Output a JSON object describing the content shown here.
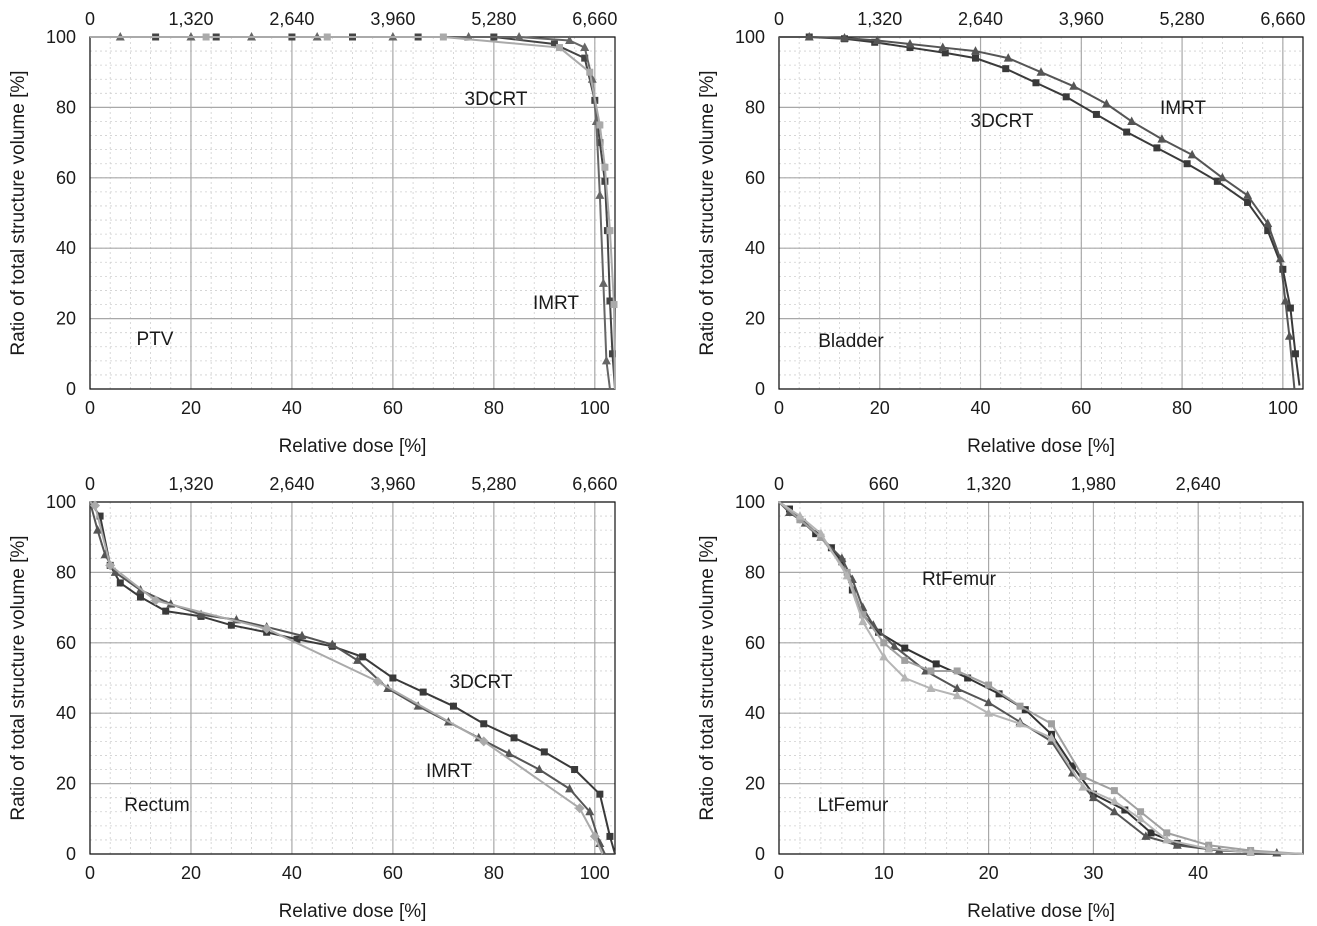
{
  "figure": {
    "panels": [
      {
        "id": "ptv",
        "xlabel": "Relative dose [%]",
        "ylabel": "Ratio of total structure volume [%]",
        "xticks": [
          "0",
          "20",
          "40",
          "60",
          "80",
          "100"
        ],
        "yticks": [
          "0",
          "20",
          "40",
          "60",
          "80",
          "100"
        ],
        "top_ticks": [
          "0",
          "1,320",
          "2,640",
          "3,960",
          "5,280",
          "6,660"
        ],
        "annotations": [
          "3DCRT",
          "IMRT",
          "PTV"
        ]
      },
      {
        "id": "bladder",
        "xlabel": "Relative dose [%]",
        "ylabel": "Ratio of total structure volume [%]",
        "xticks": [
          "0",
          "20",
          "40",
          "60",
          "80",
          "100"
        ],
        "yticks": [
          "0",
          "20",
          "40",
          "60",
          "80",
          "100"
        ],
        "top_ticks": [
          "0",
          "1,320",
          "2,640",
          "3,960",
          "5,280",
          "6,660"
        ],
        "annotations": [
          "IMRT",
          "3DCRT",
          "Bladder"
        ]
      },
      {
        "id": "rectum",
        "xlabel": "Relative dose [%]",
        "ylabel": "Ratio of total structure volume [%]",
        "xticks": [
          "0",
          "20",
          "40",
          "60",
          "80",
          "100"
        ],
        "yticks": [
          "0",
          "20",
          "40",
          "60",
          "80",
          "100"
        ],
        "top_ticks": [
          "0",
          "1,320",
          "2,640",
          "3,960",
          "5,280",
          "6,660"
        ],
        "annotations": [
          "3DCRT",
          "IMRT",
          "Rectum"
        ]
      },
      {
        "id": "femur",
        "xlabel": "Relative dose [%]",
        "ylabel": "Ratio of total structure volume [%]",
        "xticks": [
          "0",
          "10",
          "20",
          "30",
          "40"
        ],
        "yticks": [
          "0",
          "20",
          "40",
          "60",
          "80",
          "100"
        ],
        "top_ticks": [
          "0",
          "660",
          "1,320",
          "1,980",
          "2,640"
        ],
        "annotations": [
          "RtFemur",
          "LtFemur"
        ]
      }
    ]
  },
  "chart_data": [
    {
      "type": "line",
      "structure": "PTV",
      "xlabel": "Relative dose [%]",
      "ylabel": "Ratio of total structure volume [%]",
      "xlim": [
        0,
        104
      ],
      "ylim": [
        0,
        100
      ],
      "top_axis_ticks": [
        0,
        1320,
        2640,
        3960,
        5280,
        6660
      ],
      "grid": true,
      "series": [
        {
          "name": "3DCRT",
          "color": "#444444",
          "marker": "square",
          "x": [
            0,
            13,
            25,
            40,
            52,
            65,
            80,
            92,
            98,
            100,
            101,
            102,
            102.5,
            103,
            103.5,
            104
          ],
          "y": [
            100,
            100,
            100,
            100,
            100,
            100,
            100,
            98,
            94,
            82,
            70,
            59,
            45,
            25,
            10,
            0
          ]
        },
        {
          "name": "IMRT",
          "color": "#666666",
          "marker": "triangle",
          "x": [
            0,
            6,
            20,
            32,
            45,
            60,
            75,
            85,
            95,
            98,
            99.5,
            100.3,
            101,
            101.7,
            102.3,
            103
          ],
          "y": [
            100,
            100,
            100,
            100,
            100,
            100,
            100,
            100,
            99,
            97,
            88,
            76,
            55,
            30,
            8,
            0
          ]
        },
        {
          "name": "3DCRT (light)",
          "color": "#aaaaaa",
          "marker": "square",
          "x": [
            0,
            23,
            47,
            70,
            93,
            99,
            101,
            102,
            103,
            103.8,
            104
          ],
          "y": [
            100,
            100,
            100,
            100,
            97,
            90,
            75,
            63,
            45,
            24,
            0
          ]
        }
      ]
    },
    {
      "type": "line",
      "structure": "Bladder",
      "xlabel": "Relative dose [%]",
      "ylabel": "Ratio of total structure volume [%]",
      "xlim": [
        0,
        104
      ],
      "ylim": [
        0,
        100
      ],
      "top_axis_ticks": [
        0,
        1320,
        2640,
        3960,
        5280,
        6660
      ],
      "grid": true,
      "series": [
        {
          "name": "3DCRT",
          "color": "#3a3a3a",
          "marker": "square",
          "x": [
            0,
            6,
            13,
            19,
            26,
            33,
            39,
            45,
            51,
            57,
            63,
            69,
            75,
            81,
            87,
            93,
            97,
            100,
            101.5,
            102.5,
            103.3
          ],
          "y": [
            100,
            100,
            99.5,
            98.5,
            97,
            95.5,
            94,
            91,
            87,
            83,
            78,
            73,
            68.5,
            64,
            59,
            53,
            45,
            34,
            23,
            10,
            1
          ]
        },
        {
          "name": "IMRT",
          "color": "#555555",
          "marker": "triangle",
          "x": [
            0,
            6,
            13,
            19.5,
            26,
            32.5,
            39,
            45.5,
            52,
            58.5,
            65,
            70,
            76,
            82,
            88,
            93,
            97,
            99.5,
            100.5,
            101.3,
            102.3
          ],
          "y": [
            100,
            100,
            99.7,
            99,
            98,
            97,
            96,
            94,
            90,
            86,
            81,
            76,
            71,
            66.5,
            60,
            55,
            47,
            37,
            25,
            15,
            0
          ]
        }
      ]
    },
    {
      "type": "line",
      "structure": "Rectum",
      "xlabel": "Relative dose [%]",
      "ylabel": "Ratio of total structure volume [%]",
      "xlim": [
        0,
        104
      ],
      "ylim": [
        0,
        100
      ],
      "top_axis_ticks": [
        0,
        1320,
        2640,
        3960,
        5280,
        6660
      ],
      "grid": true,
      "series": [
        {
          "name": "3DCRT",
          "color": "#3a3a3a",
          "marker": "square",
          "x": [
            0,
            2,
            4,
            6,
            10,
            15,
            22,
            28,
            35,
            41,
            48,
            54,
            60,
            66,
            72,
            78,
            84,
            90,
            96,
            101,
            103,
            104
          ],
          "y": [
            100,
            96,
            82,
            77,
            73,
            69,
            67.5,
            65,
            63,
            61,
            59,
            56,
            50,
            46,
            42,
            37,
            33,
            29,
            24,
            17,
            5,
            0
          ]
        },
        {
          "name": "IMRT",
          "color": "#555555",
          "marker": "triangle",
          "x": [
            0,
            1.5,
            3,
            5,
            10,
            16,
            22,
            29,
            35,
            42,
            48,
            53,
            59,
            65,
            71,
            77,
            83,
            89,
            95,
            99,
            101,
            102
          ],
          "y": [
            100,
            92,
            85,
            80,
            75,
            71,
            68,
            66.5,
            64.5,
            62,
            59.5,
            55,
            47,
            42,
            37.5,
            33,
            28.5,
            24,
            18.5,
            12,
            3,
            0
          ]
        },
        {
          "name": "IMRT (light)",
          "color": "#aaaaaa",
          "marker": "diamond",
          "x": [
            0,
            1,
            4,
            13,
            35,
            57,
            78,
            97,
            100,
            101.5
          ],
          "y": [
            100,
            99,
            82,
            72,
            64,
            49,
            32,
            13,
            5,
            0
          ]
        }
      ]
    },
    {
      "type": "line",
      "structure": "Femur",
      "xlabel": "Relative dose [%]",
      "ylabel": "Ratio of total structure volume [%]",
      "xlim": [
        0,
        50
      ],
      "ylim": [
        0,
        100
      ],
      "top_axis_ticks": [
        0,
        660,
        1320,
        1980,
        2640
      ],
      "grid": true,
      "series": [
        {
          "name": "RtFemur",
          "color": "#333333",
          "marker": "square",
          "x": [
            0,
            1,
            2,
            3.5,
            5,
            6,
            7,
            8,
            9.5,
            12,
            15,
            18,
            21,
            23.5,
            26,
            28,
            30,
            33,
            35.5,
            38,
            41,
            45,
            50
          ],
          "y": [
            100,
            98,
            95,
            91,
            87,
            83,
            75,
            68,
            63,
            58.5,
            54,
            50,
            45.5,
            41,
            34,
            25,
            17,
            12.5,
            6,
            3,
            1.5,
            0.5,
            0
          ]
        },
        {
          "name": "LtFemur",
          "color": "#555555",
          "marker": "triangle",
          "x": [
            0,
            1,
            2.5,
            4,
            6,
            7,
            8,
            9,
            11,
            14,
            17,
            20,
            23,
            26,
            28,
            30,
            32,
            35,
            38,
            42,
            47.5,
            50
          ],
          "y": [
            100,
            97,
            94,
            90,
            84,
            78,
            70,
            65,
            59,
            52,
            47,
            43,
            37.5,
            32,
            23,
            16,
            12,
            5,
            2.5,
            1,
            0.3,
            0
          ]
        },
        {
          "name": "RtFemur (light)",
          "color": "#a0a0a0",
          "marker": "square",
          "x": [
            0,
            2,
            4,
            6.5,
            8,
            10,
            12,
            14.5,
            17,
            20,
            23,
            26,
            29,
            32,
            34.5,
            37,
            41,
            45,
            50
          ],
          "y": [
            100,
            95,
            90,
            80,
            68,
            60,
            55,
            52,
            52,
            48,
            42,
            37,
            22,
            18,
            12,
            6,
            2.5,
            1,
            0
          ]
        },
        {
          "name": "LtFemur (light)",
          "color": "#b5b5b5",
          "marker": "triangle",
          "x": [
            0,
            2,
            4,
            6.5,
            8,
            10,
            12,
            14.5,
            17,
            20,
            23,
            26,
            29,
            32,
            34.5,
            37,
            41,
            45,
            50
          ],
          "y": [
            100,
            96,
            91,
            79,
            66,
            56,
            50,
            47,
            45,
            40,
            37,
            33,
            19,
            15,
            10,
            4,
            1.5,
            0.5,
            0
          ]
        }
      ]
    }
  ]
}
